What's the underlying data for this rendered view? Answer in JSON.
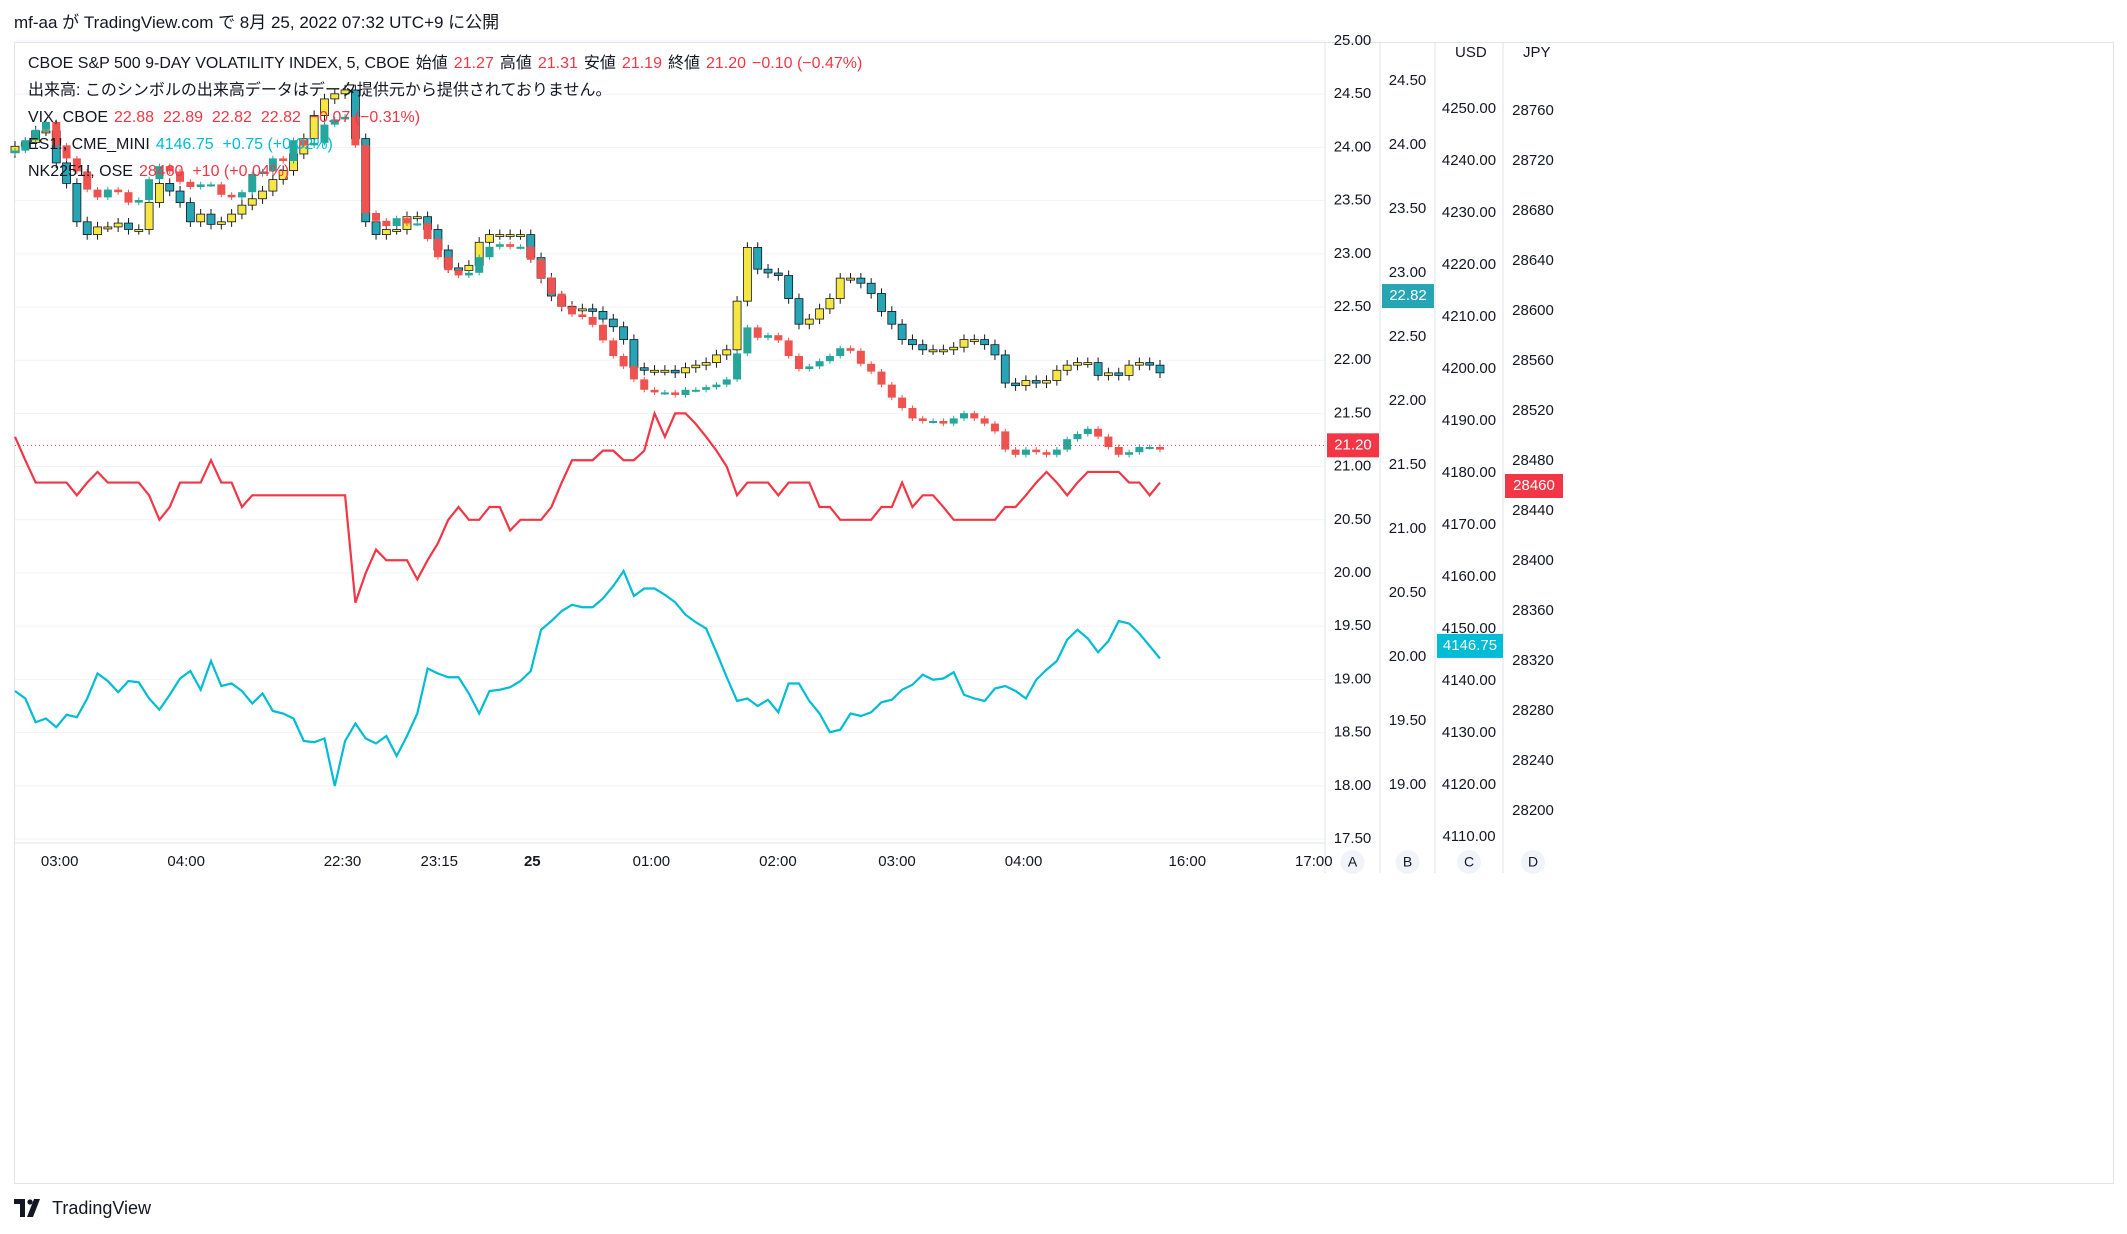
{
  "header": {
    "text": "mf-aa が TradingView.com で 8月 25, 2022 07:32 UTC+9 に公開"
  },
  "legend": {
    "main": {
      "name": "CBOE S&P 500 9-DAY VOLATILITY INDEX, 5, CBOE",
      "open_label": "始値",
      "open": "21.27",
      "high_label": "高値",
      "high": "21.31",
      "low_label": "安値",
      "low": "21.19",
      "close_label": "終値",
      "close": "21.20",
      "change": "−0.10 (−0.47%)"
    },
    "volume_note": "出来高: このシンボルの出来高データはデータ提供元から提供されておりません。",
    "vix": {
      "name": "VIX, CBOE",
      "values": "22.88  22.89  22.82  22.82  −0.07 (−0.31%)"
    },
    "es1": {
      "name": "ES1!, CME_MINI",
      "values": "4146.75  +0.75 (+0.02%)"
    },
    "nk": {
      "name": "NK2251!, OSE",
      "values": "28460  +10 (+0.04%)"
    }
  },
  "axis_headers": {
    "usd": "USD",
    "jpy": "JPY"
  },
  "scale_buttons": [
    "A",
    "B",
    "C",
    "D"
  ],
  "footer": {
    "brand": "TradingView"
  },
  "colors": {
    "up": "#26a69a",
    "down": "#ef5350",
    "yellow": "#f5e642",
    "teal_candle": "#26a6b5",
    "vix_line_red": "#f23645",
    "es_line": "#00bcd4",
    "grid": "#f0f3fa"
  },
  "chart_data": {
    "type": "candlestick+line",
    "x_ticks": [
      "03:00",
      "04:00",
      "22:30",
      "23:15",
      "25",
      "01:00",
      "02:00",
      "03:00",
      "04:00",
      "16:00",
      "17:00"
    ],
    "axis_A": {
      "ticks": [
        25.0,
        24.5,
        24.0,
        23.5,
        23.0,
        22.5,
        22.0,
        21.5,
        21.0,
        20.5,
        20.0,
        19.5,
        19.0,
        18.5,
        18.0,
        17.5
      ],
      "tick_labels": [
        "25.00",
        "24.50",
        "24.00",
        "23.50",
        "23.00",
        "22.50",
        "22.00",
        "21.50",
        "21.00",
        "20.50",
        "20.00",
        "19.50",
        "19.00",
        "18.50",
        "18.00",
        "17.50"
      ],
      "last": "21.20"
    },
    "axis_B": {
      "ticks": [
        24.5,
        24.0,
        23.5,
        23.0,
        22.5,
        22.0,
        21.5,
        21.0,
        20.5,
        20.0,
        19.5,
        19.0
      ],
      "tick_labels": [
        "24.50",
        "24.00",
        "23.50",
        "23.00",
        "22.50",
        "22.00",
        "21.50",
        "21.00",
        "20.50",
        "20.00",
        "19.50",
        "19.00"
      ],
      "last": "22.82"
    },
    "axis_C": {
      "ticks": [
        4250,
        4240,
        4230,
        4220,
        4210,
        4200,
        4190,
        4180,
        4170,
        4160,
        4150,
        4140,
        4130,
        4120,
        4110
      ],
      "tick_labels": [
        "4250.00",
        "4240.00",
        "4230.00",
        "4220.00",
        "4210.00",
        "4200.00",
        "4190.00",
        "4180.00",
        "4170.00",
        "4160.00",
        "4150.00",
        "4140.00",
        "4130.00",
        "4120.00",
        "4110.00"
      ],
      "last": "4146.75"
    },
    "axis_D": {
      "ticks": [
        28760,
        28720,
        28680,
        28640,
        28600,
        28560,
        28520,
        28480,
        28440,
        28400,
        28360,
        28320,
        28280,
        28240,
        28200
      ],
      "tick_labels": [
        "28760",
        "28720",
        "28680",
        "28640",
        "28600",
        "28560",
        "28520",
        "28480",
        "28440",
        "28400",
        "28360",
        "28320",
        "28280",
        "28240",
        "28200"
      ],
      "last": "28460"
    },
    "vix_candles_close": [
      23.99,
      24.02,
      24.11,
      24.11,
      23.86,
      23.7,
      23.4,
      23.3,
      23.36,
      23.36,
      23.39,
      23.34,
      23.34,
      23.55,
      23.7,
      23.64,
      23.55,
      23.4,
      23.46,
      23.38,
      23.4,
      23.46,
      23.53,
      23.58,
      23.64,
      23.73,
      23.8,
      23.93,
      24.05,
      24.23,
      24.36,
      24.4,
      24.43,
      24.05,
      23.4,
      23.3,
      23.34,
      23.34,
      23.44,
      23.44,
      23.34,
      23.18,
      23.04,
      23.02,
      23.06,
      23.24,
      23.3,
      23.3,
      23.3,
      23.3,
      23.12,
      22.96,
      22.82,
      22.74,
      22.72,
      22.72,
      22.7,
      22.64,
      22.58,
      22.48,
      22.26,
      22.24,
      22.24,
      22.24,
      22.22,
      22.26,
      22.28,
      22.3,
      22.36,
      22.4,
      22.78,
      23.2,
      23.03,
      23.0,
      22.98,
      22.8,
      22.6,
      22.64,
      22.72,
      22.8,
      22.96,
      22.96,
      22.92,
      22.84,
      22.7,
      22.6,
      22.48,
      22.44,
      22.4,
      22.4,
      22.4,
      22.42,
      22.48,
      22.48,
      22.44,
      22.36,
      22.14,
      22.12,
      22.16,
      22.14,
      22.16,
      22.24,
      22.28,
      22.3,
      22.3,
      22.2,
      22.22,
      22.2,
      22.28,
      22.3,
      22.28,
      22.22
    ],
    "es_candles_close": [
      4242.0,
      4244.0,
      4246.0,
      4247.5,
      4243.0,
      4240.5,
      4238.0,
      4234.5,
      4233.0,
      4234.5,
      4234.0,
      4232.0,
      4232.5,
      4236.5,
      4239.0,
      4238.0,
      4236.0,
      4235.0,
      4235.5,
      4235.5,
      4233.5,
      4233.0,
      4234.0,
      4237.5,
      4238.0,
      4240.5,
      4240.0,
      4244.0,
      4243.0,
      4243.5,
      4247.0,
      4248.0,
      4248.5,
      4243.0,
      4230.0,
      4228.5,
      4227.5,
      4229.0,
      4228.0,
      4228.0,
      4225.0,
      4221.5,
      4219.0,
      4218.0,
      4218.5,
      4221.5,
      4223.5,
      4224.0,
      4223.5,
      4223.5,
      4221.0,
      4217.5,
      4214.5,
      4212.0,
      4210.5,
      4210.0,
      4208.5,
      4205.5,
      4202.5,
      4200.5,
      4198.0,
      4196.0,
      4195.5,
      4195.5,
      4195.0,
      4196.0,
      4196.0,
      4196.5,
      4197.0,
      4198.0,
      4203.0,
      4208.0,
      4206.0,
      4206.5,
      4205.5,
      4202.5,
      4200.0,
      4200.5,
      4201.5,
      4202.5,
      4204.0,
      4203.5,
      4201.0,
      4199.5,
      4197.0,
      4194.5,
      4192.5,
      4190.5,
      4190.0,
      4190.0,
      4189.5,
      4190.5,
      4191.5,
      4190.5,
      4189.5,
      4188.0,
      4184.5,
      4183.5,
      4184.5,
      4184.0,
      4183.5,
      4184.5,
      4186.5,
      4187.5,
      4188.5,
      4187.0,
      4185.0,
      4183.5,
      4184.0,
      4185.0,
      4185.0,
      4184.5
    ],
    "vix9d_line": [
      21.28,
      21.06,
      20.85,
      20.85,
      20.85,
      20.85,
      20.73,
      20.85,
      20.95,
      20.85,
      20.85,
      20.85,
      20.85,
      20.73,
      20.5,
      20.62,
      20.85,
      20.85,
      20.85,
      21.06,
      20.85,
      20.85,
      20.62,
      20.73,
      20.73,
      20.73,
      20.73,
      20.73,
      20.73,
      20.73,
      20.73,
      20.73,
      20.73,
      19.72,
      20.0,
      20.22,
      20.12,
      20.12,
      20.12,
      19.94,
      20.12,
      20.28,
      20.5,
      20.62,
      20.5,
      20.5,
      20.62,
      20.62,
      20.4,
      20.5,
      20.5,
      20.5,
      20.62,
      20.85,
      21.06,
      21.06,
      21.06,
      21.15,
      21.15,
      21.06,
      21.06,
      21.15,
      21.5,
      21.28,
      21.5,
      21.5,
      21.4,
      21.28,
      21.15,
      21.0,
      20.73,
      20.85,
      20.85,
      20.85,
      20.73,
      20.85,
      20.85,
      20.85,
      20.62,
      20.62,
      20.5,
      20.5,
      20.5,
      20.5,
      20.62,
      20.62,
      20.85,
      20.62,
      20.73,
      20.73,
      20.62,
      20.5,
      20.5,
      20.5,
      20.5,
      20.5,
      20.62,
      20.62,
      20.73,
      20.85,
      20.95,
      20.85,
      20.73,
      20.85,
      20.95,
      20.95,
      20.95,
      20.95,
      20.85,
      20.85,
      20.73,
      20.85
    ],
    "nk_line": [
      28296,
      28290,
      28271,
      28274,
      28267,
      28277,
      28275,
      28290,
      28310,
      28304,
      28295,
      28304,
      28303,
      28290,
      28281,
      28293,
      28306,
      28312,
      28297,
      28320,
      28300,
      28302,
      28296,
      28286,
      28294,
      28280,
      28278,
      28274,
      28256,
      28255,
      28258,
      28220,
      28256,
      28270,
      28258,
      28254,
      28260,
      28244,
      28260,
      28278,
      28314,
      28310,
      28307,
      28307,
      28294,
      28278,
      28296,
      28297,
      28299,
      28304,
      28312,
      28345,
      28352,
      28360,
      28365,
      28363,
      28363,
      28370,
      28380,
      28392,
      28372,
      28378,
      28378,
      28373,
      28367,
      28357,
      28351,
      28346,
      28327,
      28307,
      28288,
      28290,
      28284,
      28289,
      28279,
      28302,
      28302,
      28288,
      28278,
      28263,
      28265,
      28278,
      28276,
      28279,
      28287,
      28289,
      28297,
      28301,
      28309,
      28305,
      28306,
      28311,
      28293,
      28290,
      28288,
      28298,
      28300,
      28296,
      28290,
      28305,
      28313,
      28320,
      28337,
      28345,
      28338,
      28327,
      28336,
      28352,
      28350,
      28342,
      28332,
      28322
    ],
    "last_values": {
      "vix9d": "21.20",
      "vix": "22.82",
      "es": "4146.75",
      "nk": "28460"
    }
  }
}
